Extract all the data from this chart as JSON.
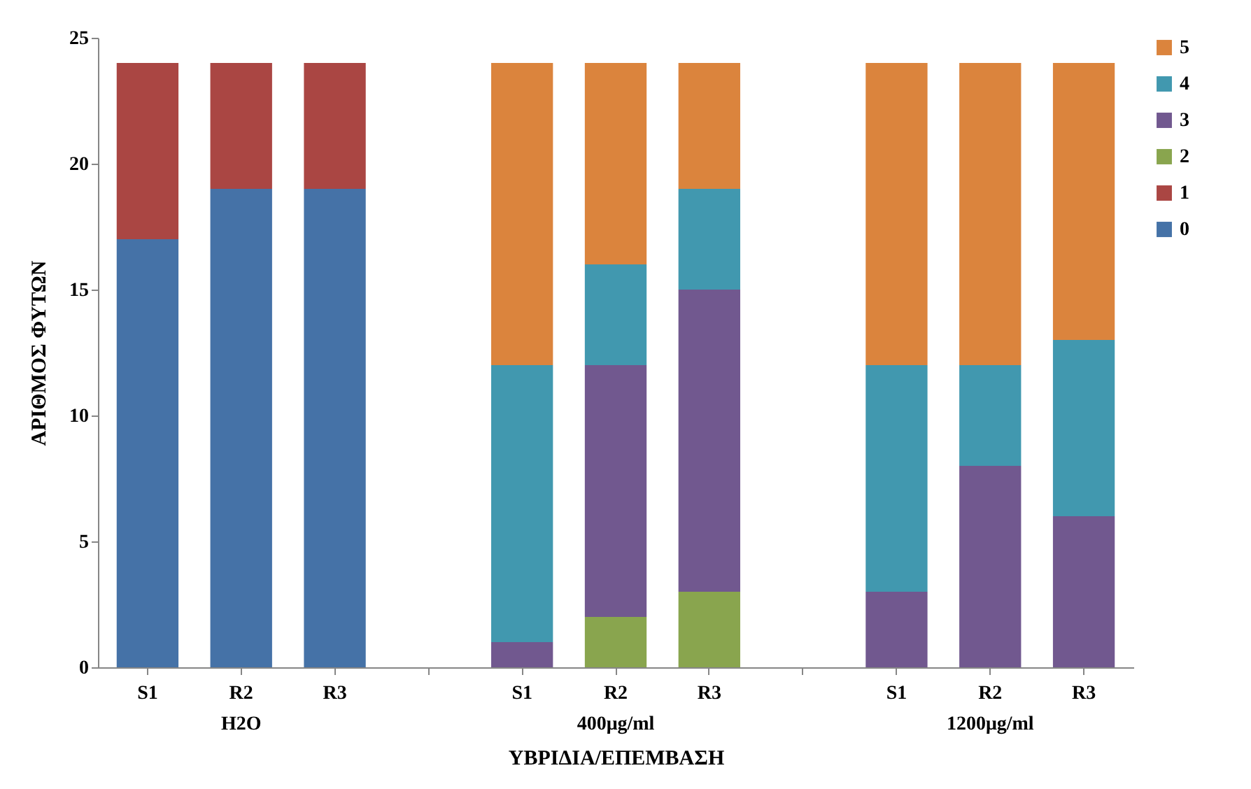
{
  "chart_data": {
    "type": "bar",
    "stacked": true,
    "xlabel": "ΥΒΡΙΔΙΑ/ΕΠΕΜΒΑΣΗ",
    "ylabel": "ΑΡΙΘΜΟΣ ΦΥΤΩΝ",
    "categories": [
      "S1",
      "R2\nH2O",
      "R3",
      null,
      "S1",
      "R2\n400μg/ml",
      "R3",
      null,
      "S1",
      "R2\n1200μg/ml",
      "R3"
    ],
    "series": [
      {
        "name": "0",
        "color": "#4572a7",
        "values": [
          17,
          19,
          19,
          null,
          null,
          null,
          null,
          null,
          null,
          null,
          null
        ]
      },
      {
        "name": "1",
        "color": "#aa4643",
        "values": [
          7,
          5,
          5,
          null,
          null,
          null,
          null,
          null,
          null,
          null,
          null
        ]
      },
      {
        "name": "2",
        "color": "#89a54e",
        "values": [
          null,
          null,
          null,
          null,
          null,
          2,
          3,
          null,
          null,
          null,
          null
        ]
      },
      {
        "name": "3",
        "color": "#71588f",
        "values": [
          null,
          null,
          null,
          null,
          1,
          10,
          12,
          null,
          3,
          8,
          6
        ]
      },
      {
        "name": "4",
        "color": "#4198af",
        "values": [
          null,
          null,
          null,
          null,
          11,
          4,
          4,
          null,
          9,
          4,
          7
        ]
      },
      {
        "name": "5",
        "color": "#db843d",
        "values": [
          null,
          null,
          null,
          null,
          12,
          8,
          5,
          null,
          12,
          12,
          11
        ]
      }
    ],
    "ylim": [
      0,
      25
    ],
    "yticks": [
      0,
      5,
      10,
      15,
      20,
      25
    ],
    "grid": false,
    "legend": "right"
  }
}
